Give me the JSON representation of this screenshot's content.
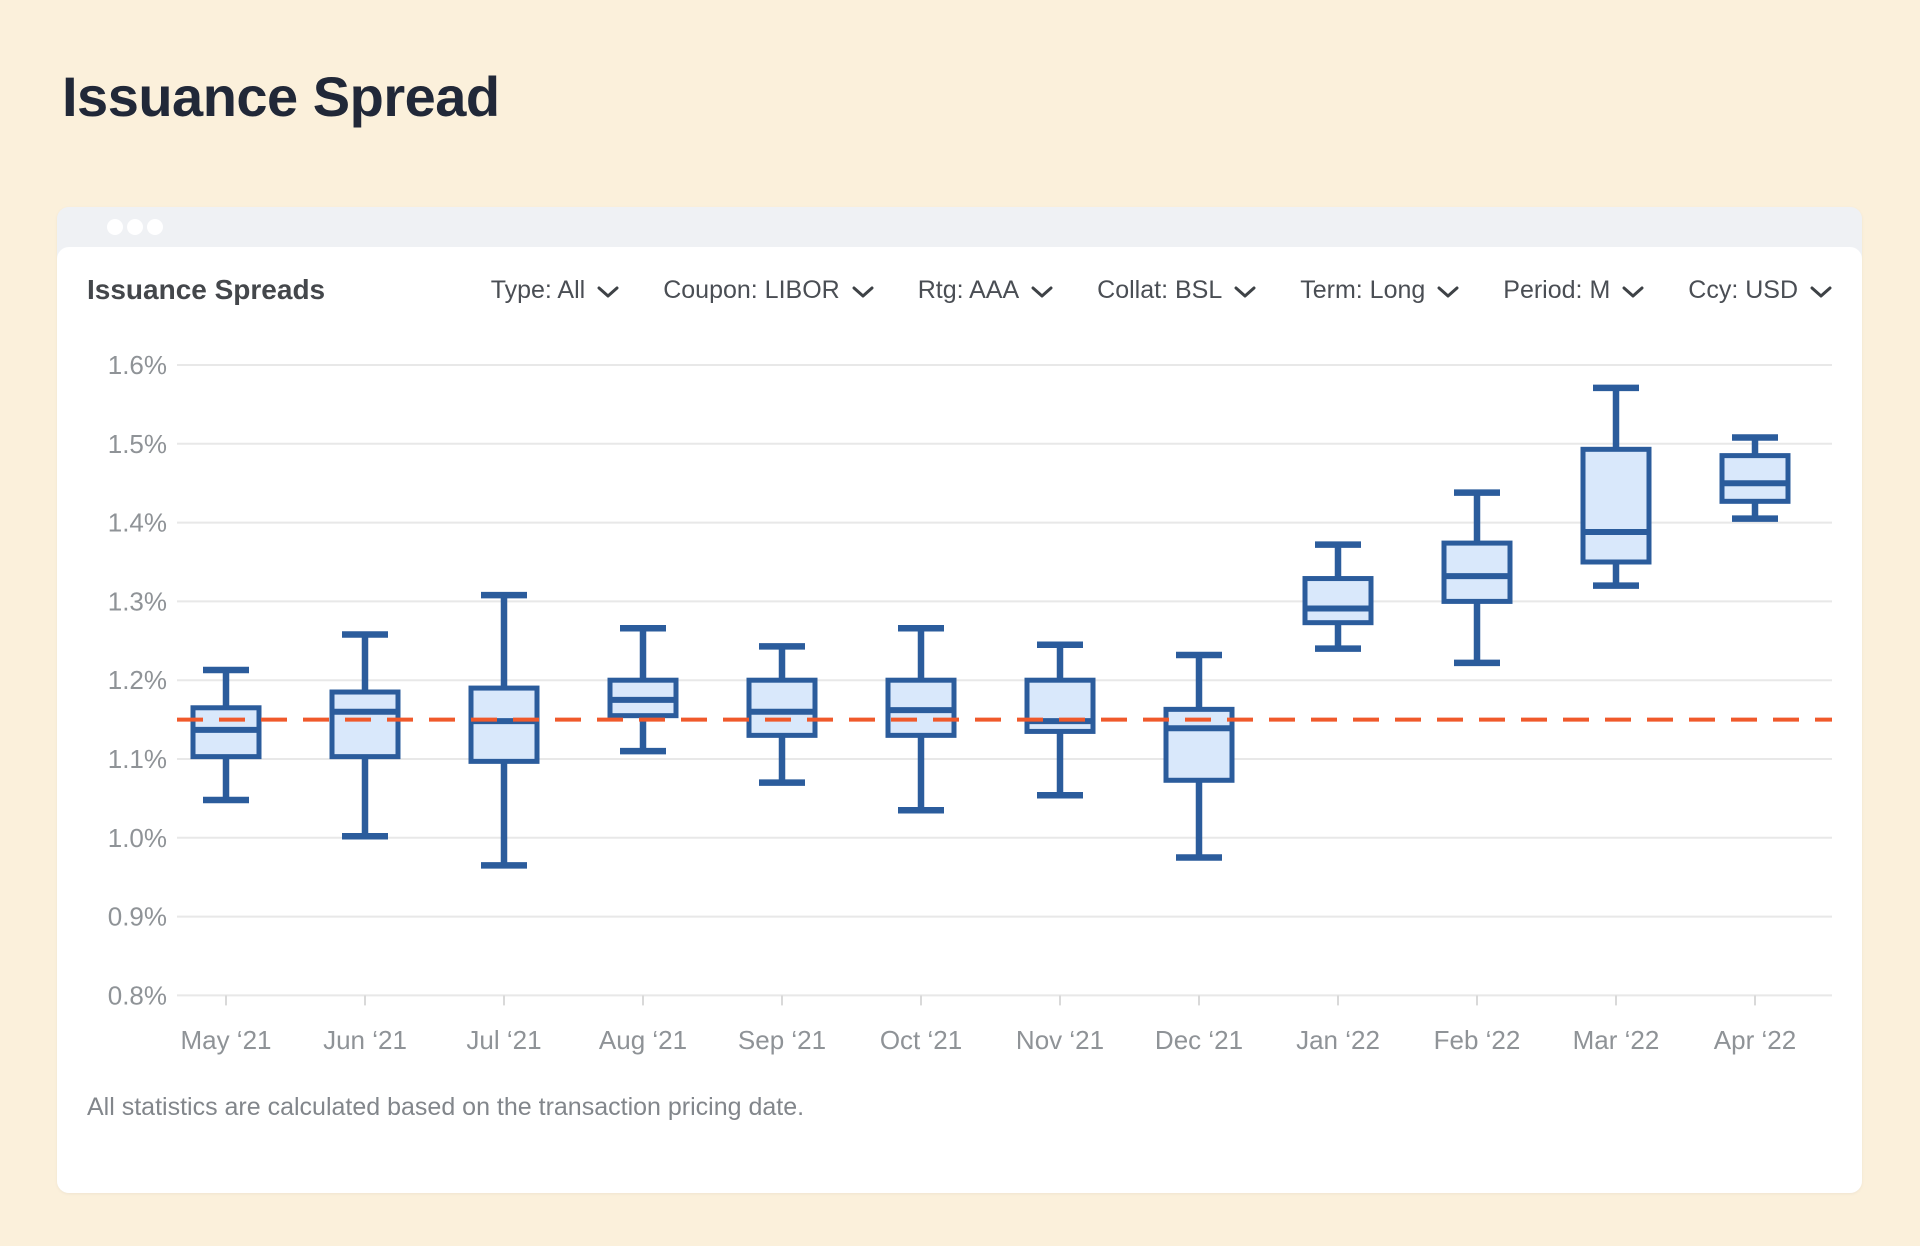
{
  "page": {
    "title": "Issuance Spread",
    "background_color": "#FBF0DB"
  },
  "card": {
    "title": "Issuance Spreads",
    "filters": [
      {
        "id": "type",
        "label": "Type: All"
      },
      {
        "id": "coupon",
        "label": "Coupon: LIBOR"
      },
      {
        "id": "rtg",
        "label": "Rtg: AAA"
      },
      {
        "id": "collat",
        "label": "Collat: BSL"
      },
      {
        "id": "term",
        "label": "Term: Long"
      },
      {
        "id": "period",
        "label": "Period: M"
      },
      {
        "id": "ccy",
        "label": "Ccy: USD"
      }
    ],
    "footnote": "All statistics are calculated based on the transaction pricing date."
  },
  "chart_data": {
    "type": "boxplot",
    "title": "Issuance Spreads",
    "unit": "%",
    "ylim": [
      0.8,
      1.6
    ],
    "yticks": [
      1.6,
      1.5,
      1.4,
      1.3,
      1.2,
      1.1,
      1.0,
      0.9,
      0.8
    ],
    "grid": true,
    "categories": [
      "May ‘21",
      "Jun ‘21",
      "Jul ‘21",
      "Aug ‘21",
      "Sep ‘21",
      "Oct ‘21",
      "Nov ‘21",
      "Dec ‘21",
      "Jan ‘22",
      "Feb ‘22",
      "Mar ‘22",
      "Apr ‘22"
    ],
    "boxes": [
      {
        "category": "May ‘21",
        "low": 1.048,
        "q1": 1.103,
        "median": 1.137,
        "q3": 1.165,
        "high": 1.213
      },
      {
        "category": "Jun ‘21",
        "low": 1.002,
        "q1": 1.103,
        "median": 1.16,
        "q3": 1.185,
        "high": 1.258
      },
      {
        "category": "Jul ‘21",
        "low": 0.965,
        "q1": 1.097,
        "median": 1.148,
        "q3": 1.19,
        "high": 1.308
      },
      {
        "category": "Aug ‘21",
        "low": 1.11,
        "q1": 1.155,
        "median": 1.175,
        "q3": 1.2,
        "high": 1.266
      },
      {
        "category": "Sep ‘21",
        "low": 1.07,
        "q1": 1.13,
        "median": 1.16,
        "q3": 1.2,
        "high": 1.243
      },
      {
        "category": "Oct ‘21",
        "low": 1.035,
        "q1": 1.13,
        "median": 1.162,
        "q3": 1.2,
        "high": 1.266
      },
      {
        "category": "Nov ‘21",
        "low": 1.054,
        "q1": 1.135,
        "median": 1.148,
        "q3": 1.2,
        "high": 1.245
      },
      {
        "category": "Dec ‘21",
        "low": 0.975,
        "q1": 1.073,
        "median": 1.139,
        "q3": 1.163,
        "high": 1.232
      },
      {
        "category": "Jan ‘22",
        "low": 1.24,
        "q1": 1.273,
        "median": 1.291,
        "q3": 1.329,
        "high": 1.372
      },
      {
        "category": "Feb ‘22",
        "low": 1.222,
        "q1": 1.3,
        "median": 1.332,
        "q3": 1.374,
        "high": 1.438
      },
      {
        "category": "Mar ‘22",
        "low": 1.32,
        "q1": 1.35,
        "median": 1.388,
        "q3": 1.493,
        "high": 1.571
      },
      {
        "category": "Apr ‘22",
        "low": 1.405,
        "q1": 1.427,
        "median": 1.45,
        "q3": 1.485,
        "high": 1.508
      }
    ],
    "reference_line": {
      "value": 1.15,
      "style": "dashed",
      "color": "#F0592B"
    },
    "legend_position": "none",
    "colors": {
      "box_fill": "#D9E8FB",
      "box_stroke": "#2B5C9C",
      "grid": "#E8E8E8",
      "tick": "#D9D9D9",
      "axis_text": "#8F9397"
    }
  }
}
